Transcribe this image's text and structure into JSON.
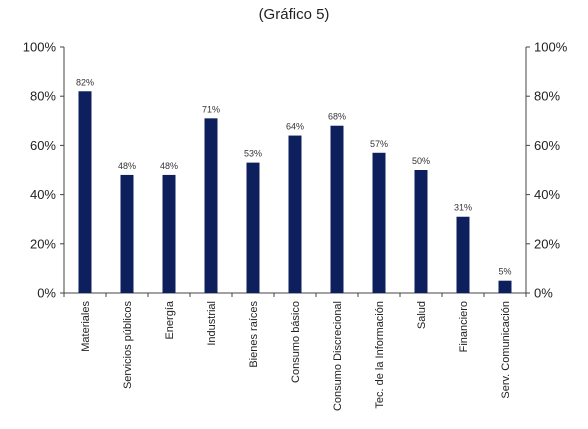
{
  "chart_data": {
    "type": "bar",
    "title": "(Gráfico 5)",
    "categories": [
      "Materiales",
      "Servicios públicos",
      "Energía",
      "Industrial",
      "Bienes raíces",
      "Consumo básico",
      "Consumo Discrecional",
      "Tec. de la Información",
      "Salud",
      "Financiero",
      "Serv. Comunicación"
    ],
    "values": [
      82,
      48,
      48,
      71,
      53,
      64,
      68,
      57,
      50,
      31,
      5
    ],
    "data_labels": [
      "82%",
      "48%",
      "48%",
      "71%",
      "53%",
      "64%",
      "68%",
      "57%",
      "50%",
      "31%",
      "5%"
    ],
    "ylim": [
      0,
      100
    ],
    "yticks": [
      0,
      20,
      40,
      60,
      80,
      100
    ],
    "ytick_labels": [
      "0%",
      "20%",
      "40%",
      "60%",
      "80%",
      "100%"
    ],
    "xlabel": "",
    "ylabel": "",
    "grid": false,
    "bar_color": "#0d1f5c",
    "axis_color": "#444444"
  }
}
